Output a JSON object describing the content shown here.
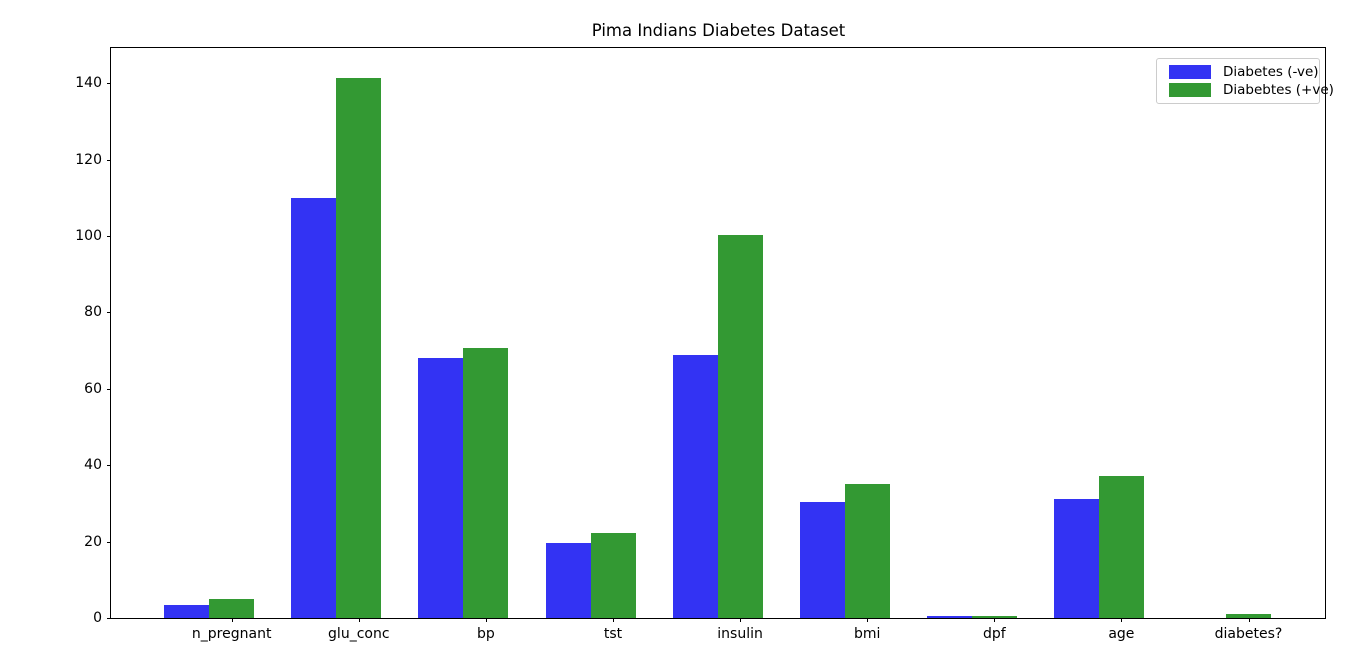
{
  "chart_data": {
    "type": "bar",
    "title": "Pima Indians Diabetes Dataset",
    "categories": [
      "n_pregnant",
      "glu_conc",
      "bp",
      "tst",
      "insulin",
      "bmi",
      "dpf",
      "age",
      "diabetes?"
    ],
    "series": [
      {
        "name": "Diabetes (-ve)",
        "color": "#3333f3",
        "values": [
          3.3,
          109.98,
          68.18,
          19.66,
          68.79,
          30.3,
          0.43,
          31.19,
          0.0
        ]
      },
      {
        "name": "Diabebtes (+ve)",
        "color": "#339933",
        "values": [
          4.87,
          141.26,
          70.82,
          22.16,
          100.34,
          35.14,
          0.55,
          37.07,
          1.0
        ]
      }
    ],
    "xlabel": "",
    "ylabel": "",
    "ylim": [
      0,
      149.5
    ],
    "yticks": [
      0,
      20,
      40,
      60,
      80,
      100,
      120,
      140
    ],
    "legend_position": "upper right",
    "grid": false,
    "background_color": "#ffffff",
    "text_color": "#000000"
  }
}
